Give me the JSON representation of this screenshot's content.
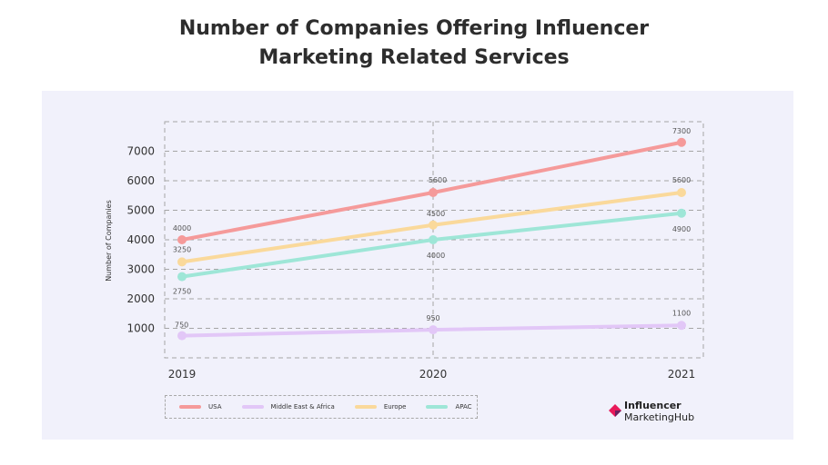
{
  "chart_data": {
    "type": "line",
    "title": "Number of Companies Offering Influencer Marketing Related Services",
    "title_line1": "Number of Companies Offering Influencer",
    "title_line2": "Marketing Related Services",
    "ylabel": "Number of Companies",
    "xlabel": "",
    "categories": [
      "2019",
      "2020",
      "2021"
    ],
    "yticks": [
      1000,
      2000,
      3000,
      4000,
      5000,
      6000,
      7000
    ],
    "ylim": [
      0,
      7800
    ],
    "grid": true,
    "legend_position": "bottom-left",
    "series": [
      {
        "name": "USA",
        "color": "#f59a9a",
        "values": [
          4000,
          5600,
          7300
        ],
        "labels": [
          "4000",
          "5600",
          "7300"
        ]
      },
      {
        "name": "Middle East & Africa",
        "color": "#e2c7f7",
        "values": [
          750,
          950,
          1100
        ],
        "labels": [
          "750",
          "950",
          "1100"
        ]
      },
      {
        "name": "Europe",
        "color": "#fad99b",
        "values": [
          3250,
          4500,
          5600
        ],
        "labels": [
          "3250",
          "4500",
          "5600"
        ]
      },
      {
        "name": "APAC",
        "color": "#9ee6d7",
        "values": [
          2750,
          4000,
          4900
        ],
        "labels": [
          "2750",
          "4000",
          "4900"
        ]
      }
    ]
  },
  "brand": {
    "line1": "Influencer",
    "line2": "MarketingHub",
    "colors": [
      "#e8195a",
      "#6b1f5f"
    ]
  }
}
